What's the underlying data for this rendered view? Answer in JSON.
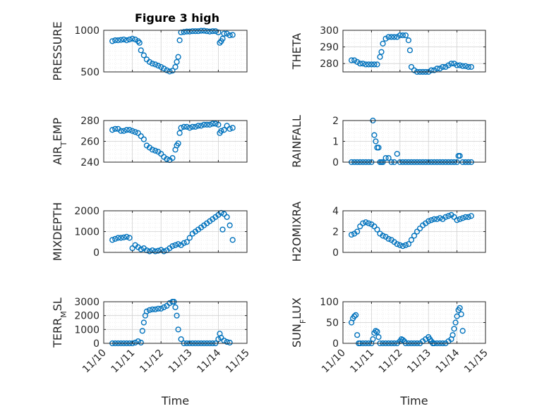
{
  "figure_title": "Figure 3 high",
  "chart_data": [
    {
      "type": "scatter",
      "ylabel": "PRESSURE",
      "ylabel_parts": [
        {
          "t": "PRESSURE",
          "sub": false
        }
      ],
      "title": "Figure 3 high",
      "xlim": [
        10,
        15
      ],
      "ylim": [
        500,
        1000
      ],
      "yticks": [
        500,
        1000
      ],
      "yticklabels": [
        "500",
        "1000"
      ],
      "grid": true,
      "marker_color": "#0072BD",
      "x": [
        10.3,
        10.4,
        10.5,
        10.6,
        10.7,
        10.8,
        10.9,
        11.0,
        11.1,
        11.2,
        11.25,
        11.3,
        11.4,
        11.5,
        11.6,
        11.7,
        11.8,
        11.9,
        12.0,
        12.1,
        12.2,
        12.3,
        12.4,
        12.5,
        12.55,
        12.6,
        12.65,
        12.7,
        12.8,
        12.9,
        13.0,
        13.1,
        13.2,
        13.3,
        13.4,
        13.5,
        13.6,
        13.7,
        13.8,
        13.9,
        14.0,
        14.05,
        14.1,
        14.15,
        14.2,
        14.3,
        14.4,
        14.5
      ],
      "y": [
        870,
        880,
        880,
        885,
        890,
        880,
        890,
        900,
        890,
        870,
        850,
        760,
        700,
        650,
        620,
        600,
        590,
        575,
        560,
        540,
        520,
        505,
        515,
        560,
        620,
        680,
        880,
        975,
        980,
        985,
        985,
        990,
        990,
        990,
        995,
        995,
        990,
        985,
        990,
        990,
        975,
        850,
        870,
        900,
        960,
        960,
        940,
        945
      ]
    },
    {
      "type": "scatter",
      "ylabel": "THETA",
      "ylabel_parts": [
        {
          "t": "THETA",
          "sub": false
        }
      ],
      "xlim": [
        10,
        15
      ],
      "ylim": [
        275,
        300
      ],
      "yticks": [
        280,
        290,
        300
      ],
      "yticklabels": [
        "280",
        "290",
        "300"
      ],
      "grid": true,
      "marker_color": "#0072BD",
      "x": [
        10.3,
        10.4,
        10.5,
        10.6,
        10.7,
        10.8,
        10.9,
        11.0,
        11.1,
        11.2,
        11.3,
        11.35,
        11.4,
        11.5,
        11.6,
        11.7,
        11.8,
        11.9,
        12.0,
        12.1,
        12.2,
        12.3,
        12.35,
        12.4,
        12.5,
        12.6,
        12.7,
        12.8,
        12.9,
        13.0,
        13.1,
        13.2,
        13.3,
        13.4,
        13.5,
        13.6,
        13.7,
        13.8,
        13.9,
        14.0,
        14.1,
        14.2,
        14.3,
        14.4,
        14.5
      ],
      "y": [
        282,
        282,
        281,
        280,
        280,
        279.5,
        279.5,
        279.5,
        279.5,
        279.5,
        284,
        287,
        292,
        295,
        296,
        296,
        296,
        296,
        297,
        297,
        297,
        294,
        288,
        278,
        276,
        275,
        275,
        275,
        275,
        275,
        276,
        276,
        277,
        277,
        278,
        278,
        279,
        280,
        280,
        279,
        279,
        278.5,
        278.5,
        278,
        278
      ]
    },
    {
      "type": "scatter",
      "ylabel": "AIR_TEMP",
      "ylabel_parts": [
        {
          "t": "AIR",
          "sub": false
        },
        {
          "t": "T",
          "sub": true
        },
        {
          "t": "EMP",
          "sub": false
        }
      ],
      "xlim": [
        10,
        15
      ],
      "ylim": [
        240,
        280
      ],
      "yticks": [
        240,
        260,
        280
      ],
      "yticklabels": [
        "240",
        "260",
        "280"
      ],
      "grid": true,
      "marker_color": "#0072BD",
      "x": [
        10.3,
        10.4,
        10.5,
        10.6,
        10.7,
        10.8,
        10.9,
        11.0,
        11.1,
        11.2,
        11.3,
        11.4,
        11.5,
        11.6,
        11.7,
        11.8,
        11.9,
        12.0,
        12.1,
        12.2,
        12.3,
        12.4,
        12.5,
        12.55,
        12.6,
        12.65,
        12.7,
        12.8,
        12.9,
        13.0,
        13.1,
        13.2,
        13.3,
        13.4,
        13.5,
        13.6,
        13.7,
        13.8,
        13.9,
        14.0,
        14.05,
        14.1,
        14.2,
        14.3,
        14.4,
        14.5
      ],
      "y": [
        271,
        272,
        272,
        270,
        270,
        271,
        271,
        270,
        269,
        268,
        265,
        262,
        256,
        254,
        252,
        251,
        250,
        248,
        245,
        243,
        242,
        244,
        252,
        256,
        258,
        268,
        273,
        274,
        274,
        273,
        274,
        274,
        275,
        275,
        276,
        276,
        276,
        277,
        277,
        276,
        268,
        270,
        271,
        275,
        272,
        273
      ]
    },
    {
      "type": "scatter",
      "ylabel": "RAINFALL",
      "ylabel_parts": [
        {
          "t": "RAINFALL",
          "sub": false
        }
      ],
      "xlim": [
        10,
        15
      ],
      "ylim": [
        0,
        2
      ],
      "yticks": [
        0,
        1,
        2
      ],
      "yticklabels": [
        "0",
        "1",
        "2"
      ],
      "grid": true,
      "marker_color": "#0072BD",
      "x": [
        10.3,
        10.4,
        10.5,
        10.6,
        10.7,
        10.8,
        10.9,
        11.0,
        11.05,
        11.1,
        11.15,
        11.2,
        11.25,
        11.3,
        11.35,
        11.4,
        11.5,
        11.6,
        11.7,
        11.8,
        11.9,
        12.0,
        12.1,
        12.2,
        12.3,
        12.4,
        12.5,
        12.6,
        12.7,
        12.8,
        12.9,
        13.0,
        13.1,
        13.2,
        13.3,
        13.4,
        13.5,
        13.6,
        13.7,
        13.8,
        13.9,
        14.0,
        14.05,
        14.1,
        14.2,
        14.3,
        14.4,
        14.5
      ],
      "y": [
        0,
        0,
        0,
        0,
        0,
        0,
        0,
        0,
        2,
        1.3,
        1.0,
        0.7,
        0.7,
        0,
        0,
        0,
        0.2,
        0.2,
        0,
        0,
        0.4,
        0,
        0,
        0,
        0,
        0,
        0,
        0,
        0,
        0,
        0,
        0,
        0,
        0,
        0,
        0,
        0,
        0,
        0,
        0,
        0,
        0,
        0.3,
        0.3,
        0,
        0,
        0,
        0
      ]
    },
    {
      "type": "scatter",
      "ylabel": "MIXDEPTH",
      "ylabel_parts": [
        {
          "t": "MIXDEPTH",
          "sub": false
        }
      ],
      "xlim": [
        10,
        15
      ],
      "ylim": [
        0,
        2000
      ],
      "yticks": [
        0,
        1000,
        2000
      ],
      "yticklabels": [
        "0",
        "1000",
        "2000"
      ],
      "grid": true,
      "marker_color": "#0072BD",
      "x": [
        10.3,
        10.4,
        10.5,
        10.6,
        10.7,
        10.8,
        10.9,
        11.0,
        11.1,
        11.2,
        11.3,
        11.4,
        11.5,
        11.6,
        11.7,
        11.8,
        11.9,
        12.0,
        12.1,
        12.2,
        12.3,
        12.4,
        12.5,
        12.6,
        12.7,
        12.8,
        12.9,
        13.0,
        13.1,
        13.2,
        13.3,
        13.4,
        13.5,
        13.6,
        13.7,
        13.8,
        13.9,
        14.0,
        14.1,
        14.15,
        14.2,
        14.3,
        14.4,
        14.5
      ],
      "y": [
        600,
        650,
        700,
        700,
        720,
        750,
        700,
        200,
        350,
        250,
        150,
        200,
        100,
        50,
        100,
        50,
        80,
        120,
        50,
        100,
        200,
        300,
        350,
        400,
        350,
        450,
        500,
        700,
        900,
        1000,
        1100,
        1200,
        1300,
        1400,
        1500,
        1600,
        1700,
        1800,
        1900,
        1100,
        1850,
        1700,
        1300,
        600
      ]
    },
    {
      "type": "scatter",
      "ylabel": "H2OMIXRA",
      "ylabel_parts": [
        {
          "t": "H2OMIXRA",
          "sub": false
        }
      ],
      "xlim": [
        10,
        15
      ],
      "ylim": [
        0,
        4
      ],
      "yticks": [
        0,
        2,
        4
      ],
      "yticklabels": [
        "0",
        "2",
        "4"
      ],
      "grid": true,
      "marker_color": "#0072BD",
      "x": [
        10.3,
        10.4,
        10.5,
        10.6,
        10.7,
        10.8,
        10.9,
        11.0,
        11.1,
        11.2,
        11.3,
        11.4,
        11.5,
        11.6,
        11.7,
        11.8,
        11.9,
        12.0,
        12.1,
        12.2,
        12.3,
        12.4,
        12.5,
        12.6,
        12.7,
        12.8,
        12.9,
        13.0,
        13.1,
        13.2,
        13.3,
        13.4,
        13.5,
        13.6,
        13.7,
        13.8,
        13.9,
        14.0,
        14.1,
        14.2,
        14.3,
        14.4,
        14.5
      ],
      "y": [
        1.7,
        1.8,
        2.0,
        2.5,
        2.8,
        2.9,
        2.8,
        2.7,
        2.5,
        2.2,
        1.8,
        1.6,
        1.5,
        1.3,
        1.2,
        1.0,
        0.8,
        0.7,
        0.6,
        0.7,
        0.8,
        1.2,
        1.6,
        2.0,
        2.3,
        2.6,
        2.8,
        3.0,
        3.1,
        3.2,
        3.2,
        3.3,
        3.2,
        3.4,
        3.5,
        3.6,
        3.4,
        3.1,
        3.2,
        3.3,
        3.4,
        3.4,
        3.5
      ]
    },
    {
      "type": "scatter",
      "ylabel": "TERR_MSL",
      "ylabel_parts": [
        {
          "t": "TERR",
          "sub": false
        },
        {
          "t": "M",
          "sub": true
        },
        {
          "t": "SL",
          "sub": false
        }
      ],
      "xlim": [
        10,
        15
      ],
      "ylim": [
        0,
        3000
      ],
      "yticks": [
        0,
        1000,
        2000,
        3000
      ],
      "yticklabels": [
        "0",
        "1000",
        "2000",
        "3000"
      ],
      "xticks": [
        10,
        11,
        12,
        13,
        14,
        15
      ],
      "xticklabels": [
        "11/10",
        "11/11",
        "11/12",
        "11/13",
        "11/14",
        "11/15"
      ],
      "xlabel": "Time",
      "grid": true,
      "marker_color": "#0072BD",
      "x": [
        10.3,
        10.4,
        10.5,
        10.6,
        10.7,
        10.8,
        10.9,
        11.0,
        11.1,
        11.2,
        11.3,
        11.35,
        11.4,
        11.45,
        11.5,
        11.6,
        11.7,
        11.8,
        11.9,
        12.0,
        12.1,
        12.2,
        12.3,
        12.4,
        12.45,
        12.5,
        12.55,
        12.6,
        12.7,
        12.8,
        12.9,
        13.0,
        13.1,
        13.2,
        13.3,
        13.4,
        13.5,
        13.6,
        13.7,
        13.8,
        13.9,
        14.0,
        14.05,
        14.1,
        14.2,
        14.3,
        14.4
      ],
      "y": [
        0,
        0,
        0,
        0,
        0,
        0,
        0,
        0,
        50,
        150,
        50,
        900,
        1500,
        2000,
        2300,
        2400,
        2450,
        2450,
        2500,
        2500,
        2600,
        2700,
        2900,
        3000,
        3000,
        2600,
        2000,
        1000,
        300,
        0,
        0,
        0,
        0,
        0,
        0,
        0,
        0,
        0,
        0,
        0,
        0,
        300,
        700,
        400,
        200,
        100,
        50
      ]
    },
    {
      "type": "scatter",
      "ylabel": "SUN_FLUX",
      "ylabel_parts": [
        {
          "t": "SUN",
          "sub": false
        },
        {
          "t": "F",
          "sub": true
        },
        {
          "t": "LUX",
          "sub": false
        }
      ],
      "xlim": [
        10,
        15
      ],
      "ylim": [
        0,
        100
      ],
      "yticks": [
        0,
        50,
        100
      ],
      "yticklabels": [
        "0",
        "50",
        "100"
      ],
      "xticks": [
        10,
        11,
        12,
        13,
        14,
        15
      ],
      "xticklabels": [
        "11/10",
        "11/11",
        "11/12",
        "11/13",
        "11/14",
        "11/15"
      ],
      "xlabel": "Time",
      "grid": true,
      "marker_color": "#0072BD",
      "x": [
        10.3,
        10.35,
        10.4,
        10.45,
        10.5,
        10.55,
        10.6,
        10.7,
        10.8,
        10.9,
        11.0,
        11.05,
        11.1,
        11.15,
        11.2,
        11.25,
        11.3,
        11.4,
        11.5,
        11.6,
        11.7,
        11.8,
        11.9,
        12.0,
        12.05,
        12.1,
        12.15,
        12.2,
        12.3,
        12.4,
        12.5,
        12.6,
        12.7,
        12.8,
        12.9,
        13.0,
        13.05,
        13.1,
        13.15,
        13.2,
        13.3,
        13.4,
        13.5,
        13.6,
        13.7,
        13.8,
        13.85,
        13.9,
        13.95,
        14.0,
        14.05,
        14.1,
        14.15,
        14.2
      ],
      "y": [
        50,
        60,
        65,
        68,
        20,
        0,
        0,
        0,
        0,
        0,
        0,
        10,
        25,
        30,
        28,
        15,
        0,
        0,
        0,
        0,
        0,
        0,
        0,
        5,
        10,
        8,
        5,
        0,
        0,
        0,
        0,
        0,
        0,
        5,
        10,
        15,
        10,
        5,
        0,
        0,
        0,
        0,
        0,
        0,
        5,
        10,
        20,
        35,
        50,
        65,
        80,
        85,
        70,
        30
      ]
    }
  ]
}
